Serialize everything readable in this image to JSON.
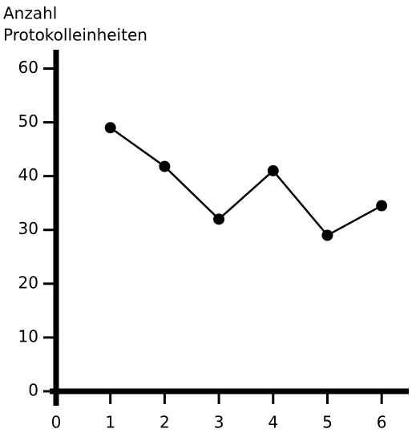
{
  "chart_data": {
    "type": "line",
    "y_label": [
      "Anzahl",
      "Protokolleinheiten"
    ],
    "x": [
      1,
      2,
      3,
      4,
      5,
      6
    ],
    "values": [
      49,
      41.8,
      32,
      41,
      29,
      34.5
    ],
    "color": "#000000",
    "xlim": [
      0,
      6.5
    ],
    "ylim": [
      0,
      63.5
    ],
    "xticks": [
      0,
      1,
      2,
      3,
      4,
      5,
      6
    ],
    "yticks": [
      0,
      10,
      20,
      30,
      40,
      50,
      60
    ]
  }
}
